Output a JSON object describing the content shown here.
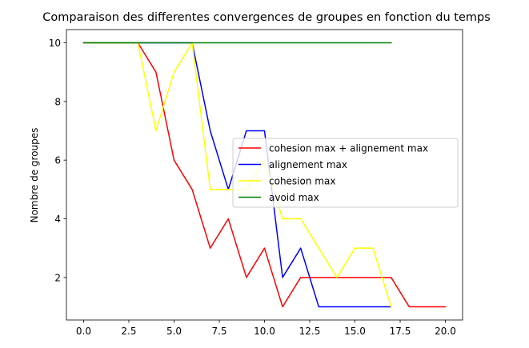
{
  "chart_data": {
    "type": "line",
    "title": "Comparaison des differentes convergences de groupes en fonction du temps",
    "xlabel": "",
    "ylabel": "Nombre de groupes",
    "xlim": [
      -0.95,
      20.95
    ],
    "ylim": [
      0.55,
      10.45
    ],
    "xticks": [
      0,
      2.5,
      5,
      7.5,
      10,
      12.5,
      15,
      17.5,
      20
    ],
    "xtick_labels": [
      "0.0",
      "2.5",
      "5.0",
      "7.5",
      "10.0",
      "12.5",
      "15.0",
      "17.5",
      "20.0"
    ],
    "yticks": [
      2,
      4,
      6,
      8,
      10
    ],
    "ytick_labels": [
      "2",
      "4",
      "6",
      "8",
      "10"
    ],
    "grid": false,
    "legend_position": "center-right",
    "series": [
      {
        "name": "cohesion max + alignement max",
        "color": "#ff0000",
        "x": [
          0,
          1,
          2,
          3,
          4,
          5,
          6,
          7,
          8,
          9,
          10,
          11,
          12,
          13,
          14,
          15,
          16,
          17,
          18,
          19,
          20
        ],
        "y": [
          10,
          10,
          10,
          10,
          9,
          6,
          5,
          3,
          4,
          2,
          3,
          1,
          2,
          2,
          2,
          2,
          2,
          2,
          1,
          1,
          1
        ]
      },
      {
        "name": "alignement max",
        "color": "#0000ff",
        "x": [
          0,
          1,
          2,
          3,
          4,
          5,
          6,
          7,
          8,
          9,
          10,
          11,
          12,
          13,
          14,
          15,
          16,
          17
        ],
        "y": [
          10,
          10,
          10,
          10,
          10,
          10,
          10,
          7,
          5,
          7,
          7,
          2,
          3,
          1,
          1,
          1,
          1,
          1
        ]
      },
      {
        "name": "cohesion max",
        "color": "#ffff00",
        "x": [
          0,
          1,
          2,
          3,
          4,
          5,
          6,
          7,
          8,
          9,
          10,
          11,
          12,
          13,
          14,
          15,
          16,
          17
        ],
        "y": [
          10,
          10,
          10,
          10,
          7,
          9,
          10,
          5,
          5,
          5,
          6,
          4,
          4,
          3,
          2,
          3,
          3,
          1
        ]
      },
      {
        "name": "avoid max",
        "color": "#008000",
        "x": [
          0,
          1,
          2,
          3,
          4,
          5,
          6,
          7,
          8,
          9,
          10,
          11,
          12,
          13,
          14,
          15,
          16,
          17
        ],
        "y": [
          10,
          10,
          10,
          10,
          10,
          10,
          10,
          10,
          10,
          10,
          10,
          10,
          10,
          10,
          10,
          10,
          10,
          10
        ]
      }
    ]
  }
}
